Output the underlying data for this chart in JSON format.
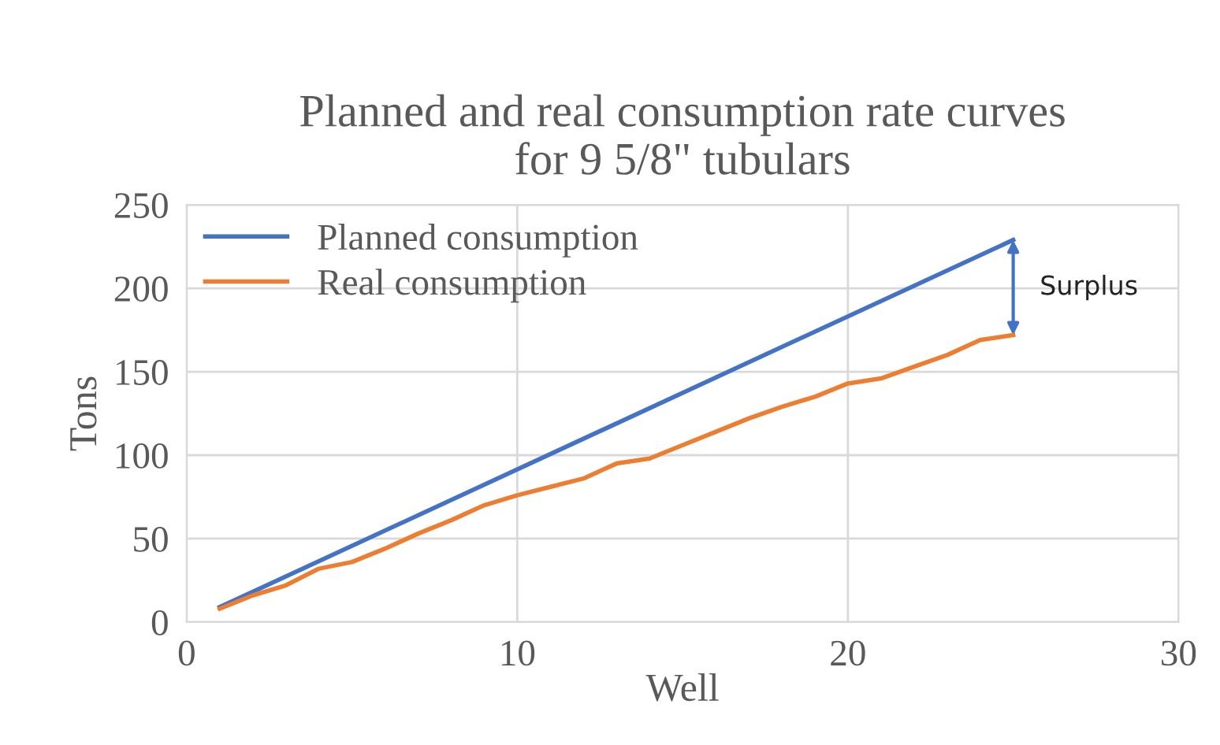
{
  "chart_data": {
    "type": "line",
    "title": "Planned and real consumption rate curves\nfor 9 5/8\" tubulars",
    "xlabel": "Well",
    "ylabel": "Tons",
    "x": [
      1,
      2,
      3,
      4,
      5,
      6,
      7,
      8,
      9,
      10,
      11,
      12,
      13,
      14,
      15,
      16,
      17,
      18,
      19,
      20,
      21,
      22,
      23,
      24,
      25
    ],
    "series": [
      {
        "name": "Planned consumption",
        "color": "#4472c4",
        "x": [
          1,
          25
        ],
        "values": [
          9,
          229
        ]
      },
      {
        "name": "Real consumption",
        "color": "#ed7d31",
        "values": [
          8,
          16,
          22,
          32,
          36,
          44,
          53,
          61,
          70,
          76,
          81,
          86,
          95,
          98,
          106,
          114,
          122,
          129,
          135,
          143,
          146,
          153,
          160,
          169,
          172
        ]
      }
    ],
    "annotations": [
      "Surplus"
    ],
    "xlim": [
      0,
      30
    ],
    "xticks": [
      0,
      10,
      20,
      30
    ],
    "ylim": [
      0,
      250
    ],
    "yticks": [
      0,
      50,
      100,
      150,
      200,
      250
    ],
    "grid": true,
    "legend": "top left",
    "marker": "none",
    "line_style": "solid"
  }
}
